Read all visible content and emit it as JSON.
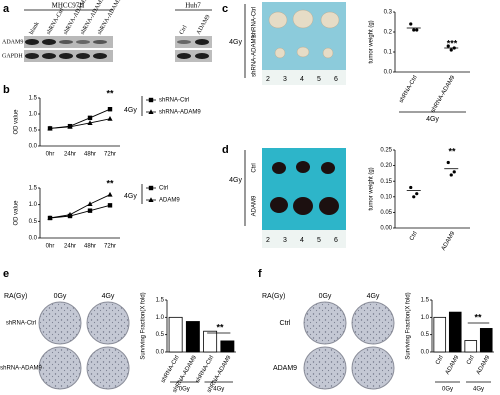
{
  "figure": {
    "panel_labels": [
      "a",
      "b",
      "c",
      "d",
      "e",
      "f"
    ],
    "blot": {
      "groups": [
        "MHCC97H",
        "Huh7"
      ],
      "lanes": [
        "blank",
        "shRNA-Ctrl",
        "shRNA-ADAM9-1",
        "shRNA-ADAM9-2",
        "shRNA-ADAM9-3",
        "Ctrl",
        "ADAM9"
      ],
      "rows": [
        "ADAM9",
        "GAPDH"
      ]
    },
    "tumor_c": {
      "rows": [
        "shRNA-Ctrl",
        "shRNA-ADAM9"
      ],
      "treatment": "4Gy",
      "ruler": [
        "2",
        "3",
        "4",
        "5",
        "6"
      ]
    },
    "tumor_d": {
      "rows": [
        "Ctrl",
        "ADAM9"
      ],
      "treatment": "4Gy",
      "ruler": [
        "2",
        "3",
        "4",
        "5",
        "6"
      ]
    },
    "colony_e": {
      "axis": "RA(Gy)",
      "doses": [
        "0Gy",
        "4Gy"
      ],
      "rows": [
        "shRNA-Ctrl",
        "shRNA-ADAM9"
      ]
    },
    "colony_f": {
      "axis": "RA(Gy)",
      "doses": [
        "0Gy",
        "4Gy"
      ],
      "rows": [
        "Ctrl",
        "ADAM9"
      ]
    }
  },
  "chart_data": [
    {
      "type": "line",
      "ylabel": "OD value",
      "categories": [
        "0hr",
        "24hr",
        "48hr",
        "72hr"
      ],
      "series": [
        {
          "name": "shRNA-Ctrl",
          "color": "#000000",
          "marker": "square",
          "values": [
            0.55,
            0.62,
            0.88,
            1.15
          ]
        },
        {
          "name": "shRNA-ADAM9",
          "color": "#000000",
          "marker": "triangle",
          "values": [
            0.55,
            0.6,
            0.72,
            0.85
          ]
        }
      ],
      "ylim": [
        0,
        1.5
      ],
      "yticks": [
        {
          "value": 0,
          "label": "0.0"
        },
        0.5,
        {
          "value": 1,
          "label": "1.0"
        },
        1.5
      ],
      "annotation": "**",
      "treatment": "4Gy"
    },
    {
      "type": "line",
      "ylabel": "OD value",
      "categories": [
        "0hr",
        "24hr",
        "48hr",
        "72hr"
      ],
      "series": [
        {
          "name": "Ctrl",
          "color": "#000000",
          "marker": "square",
          "values": [
            0.6,
            0.66,
            0.82,
            0.98
          ]
        },
        {
          "name": "ADAM9",
          "color": "#000000",
          "marker": "triangle",
          "values": [
            0.6,
            0.7,
            1.02,
            1.3
          ]
        }
      ],
      "ylim": [
        0,
        1.5
      ],
      "yticks": [
        {
          "value": 0,
          "label": "0.0"
        },
        0.5,
        {
          "value": 1,
          "label": "1.0"
        },
        1.5
      ],
      "annotation": "**",
      "treatment": "4Gy"
    },
    {
      "type": "dot",
      "ylabel": "tumor weight (g)",
      "categories": [
        "shRNA-Ctrl",
        "shRNA-ADAM9"
      ],
      "points": [
        [
          0.24,
          0.21,
          0.21
        ],
        [
          0.13,
          0.11,
          0.12
        ]
      ],
      "values": [
        0.22,
        0.12
      ],
      "ylim": [
        0,
        0.3
      ],
      "yticks": [
        {
          "value": 0,
          "label": "0.0"
        },
        0.1,
        0.2,
        0.3
      ],
      "annotation": "***",
      "xlabel": "4Gy"
    },
    {
      "type": "dot",
      "ylabel": "tumor weight (g)",
      "categories": [
        "Ctrl",
        "ADAM9"
      ],
      "points": [
        [
          0.13,
          0.1,
          0.11
        ],
        [
          0.21,
          0.17,
          0.18
        ]
      ],
      "values": [
        0.12,
        0.19
      ],
      "ylim": [
        0,
        0.25
      ],
      "yticks": [
        {
          "value": 0,
          "label": "0.00"
        },
        0.05,
        {
          "value": 0.1,
          "label": "0.10"
        },
        0.15,
        {
          "value": 0.2,
          "label": "0.20"
        },
        0.25
      ],
      "annotation": "**"
    },
    {
      "type": "bar",
      "ylabel": "Surviving Fraction(X fold)",
      "categories": [
        "shRNA-Ctrl",
        "shRNA-ADAM9",
        "shRNA-Ctrl",
        "shRNA-ADAM9"
      ],
      "groups": [
        "0Gy",
        "4Gy"
      ],
      "values": [
        1.0,
        0.88,
        0.6,
        0.32
      ],
      "colors": [
        "#ffffff",
        "#000000",
        "#ffffff",
        "#000000"
      ],
      "ylim": [
        0,
        1.5
      ],
      "yticks": [
        {
          "value": 0,
          "label": "0.0"
        },
        0.5,
        {
          "value": 1,
          "label": "1.0"
        },
        1.5
      ],
      "annotation": "**"
    },
    {
      "type": "bar",
      "ylabel": "Surviving Fraction(X fold)",
      "categories": [
        "Ctrl",
        "ADAM9",
        "Ctrl",
        "ADAM9"
      ],
      "groups": [
        "0Gy",
        "4Gy"
      ],
      "values": [
        1.0,
        1.15,
        0.33,
        0.68
      ],
      "colors": [
        "#ffffff",
        "#000000",
        "#ffffff",
        "#000000"
      ],
      "ylim": [
        0,
        1.5
      ],
      "yticks": [
        {
          "value": 0,
          "label": "0.0"
        },
        0.5,
        {
          "value": 1,
          "label": "1.0"
        },
        1.5
      ],
      "annotation": "**"
    }
  ]
}
